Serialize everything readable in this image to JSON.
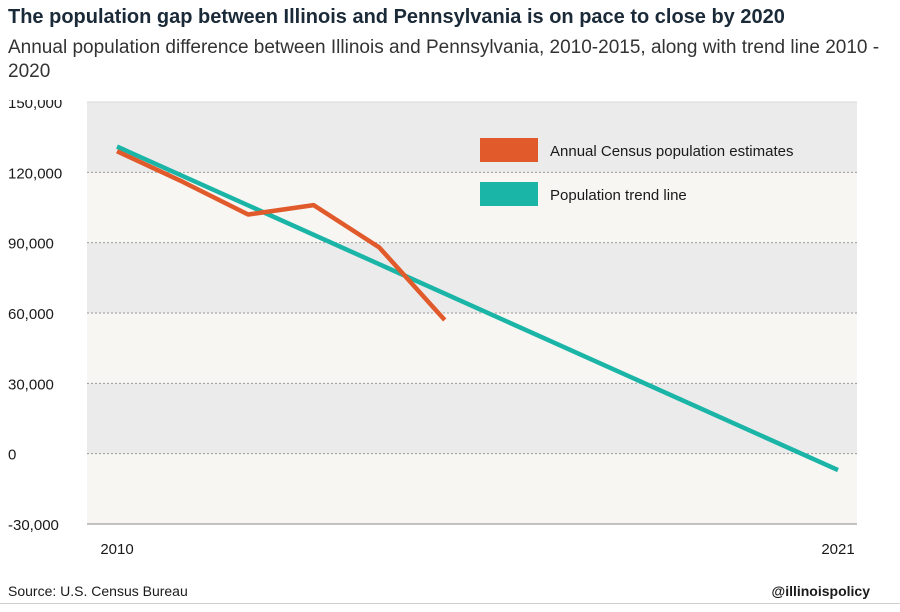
{
  "title": "The population gap between Illinois and Pennsylvania is on pace to close by 2020",
  "subtitle": "Annual population difference between Illinois and Pennsylvania, 2010-2015, along with trend line 2010 - 2020",
  "footer": {
    "source": "Source: U.S. Census Bureau",
    "handle": "@illinoispolicy"
  },
  "colors": {
    "estimates": "#e05a2b",
    "trend": "#1ab5a7",
    "band_light": "#f7f6f2",
    "band_dark": "#ebebeb",
    "grid": "#9a9a9a"
  },
  "chart_data": {
    "type": "line",
    "xlim": [
      2010,
      2021
    ],
    "x_tick_labels": [
      "2010",
      "2021"
    ],
    "ylim": [
      -30000,
      150000
    ],
    "y_ticks": [
      150000,
      120000,
      90000,
      60000,
      30000,
      0,
      -30000
    ],
    "y_tick_labels": [
      "150,000",
      "120,000",
      "90,000",
      "60,000",
      "30,000",
      "0",
      "-30,000"
    ],
    "grid": true,
    "legend_position": "top-right",
    "series": [
      {
        "name": "Annual Census population estimates",
        "color": "#e05a2b",
        "x": [
          2010,
          2011,
          2012,
          2013,
          2014,
          2015
        ],
        "y": [
          129000,
          116000,
          102000,
          106000,
          88000,
          57000
        ]
      },
      {
        "name": "Population trend line",
        "color": "#1ab5a7",
        "x": [
          2010,
          2021
        ],
        "y": [
          131000,
          -7000
        ]
      }
    ]
  }
}
